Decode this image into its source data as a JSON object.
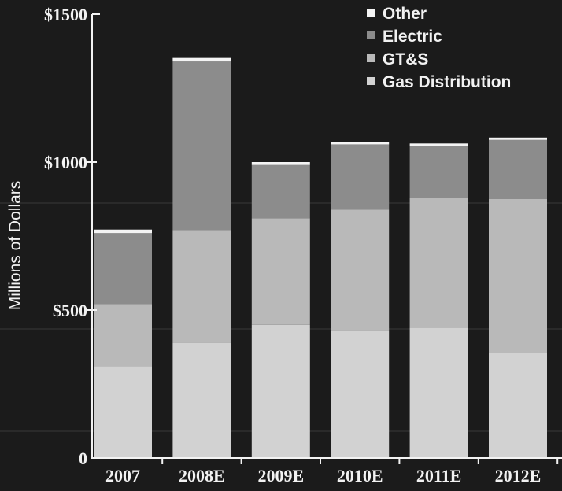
{
  "chart_data": {
    "type": "bar",
    "stacked": true,
    "title": "",
    "xlabel": "",
    "ylabel": "Millions of Dollars",
    "ylim": [
      0,
      1500
    ],
    "yticks": [
      {
        "value": 0,
        "label": "0"
      },
      {
        "value": 500,
        "label": "$500"
      },
      {
        "value": 1000,
        "label": "$1000"
      },
      {
        "value": 1500,
        "label": "$1500"
      }
    ],
    "categories": [
      "2007",
      "2008E",
      "2009E",
      "2010E",
      "2011E",
      "2012E"
    ],
    "series": [
      {
        "name": "Gas Distribution",
        "values": [
          310,
          390,
          450,
          430,
          440,
          355
        ]
      },
      {
        "name": "GT&S",
        "values": [
          210,
          380,
          360,
          410,
          440,
          520
        ]
      },
      {
        "name": "Electric",
        "values": [
          240,
          570,
          180,
          220,
          175,
          200
        ]
      },
      {
        "name": "Other",
        "values": [
          12,
          12,
          10,
          8,
          8,
          8
        ]
      }
    ],
    "legend": {
      "position": "top-right",
      "order": [
        "Other",
        "Electric",
        "GT&S",
        "Gas Distribution"
      ]
    },
    "grid": false,
    "colors": {
      "background": "#1b1b1b",
      "Gas Distribution": "#d2d2d2",
      "GT&S": "#b9b9b9",
      "Electric": "#8c8c8c",
      "Other": "#f4f4f4",
      "axis": "#f2f2f2"
    }
  }
}
